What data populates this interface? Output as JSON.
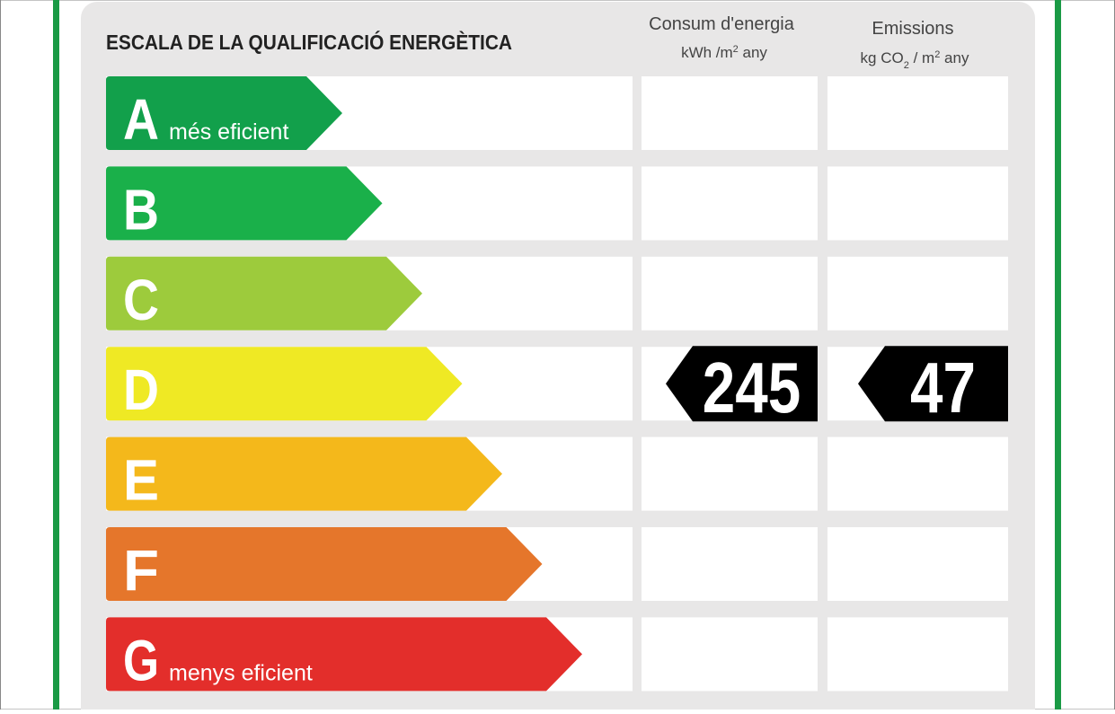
{
  "title": "ESCALA DE LA QUALIFICACIÓ ENERGÈTICA",
  "energy_header": {
    "title": "Consum d'energia",
    "unit": [
      {
        "text": "kWh /m"
      },
      {
        "text": "2",
        "sup": true
      },
      {
        "text": "  any"
      }
    ]
  },
  "emissions_header": {
    "title": "Emissions",
    "unit": [
      {
        "text": "kg CO"
      },
      {
        "text": "2",
        "sub": true
      },
      {
        "text": "  / m"
      },
      {
        "text": "2",
        "sup": true
      },
      {
        "text": "  any"
      }
    ]
  },
  "classes": [
    {
      "letter": "A",
      "note": "més eficient",
      "color": "#12a04b"
    },
    {
      "letter": "B",
      "color": "#1ab04a"
    },
    {
      "letter": "C",
      "color": "#9dcb3c"
    },
    {
      "letter": "D",
      "color": "#efe924"
    },
    {
      "letter": "E",
      "color": "#f4b81b"
    },
    {
      "letter": "F",
      "color": "#e5762b"
    },
    {
      "letter": "G",
      "note": "menys eficient",
      "color": "#e32e2b"
    }
  ],
  "rating": {
    "letter": "D",
    "energy": 245,
    "emissions": 47
  }
}
